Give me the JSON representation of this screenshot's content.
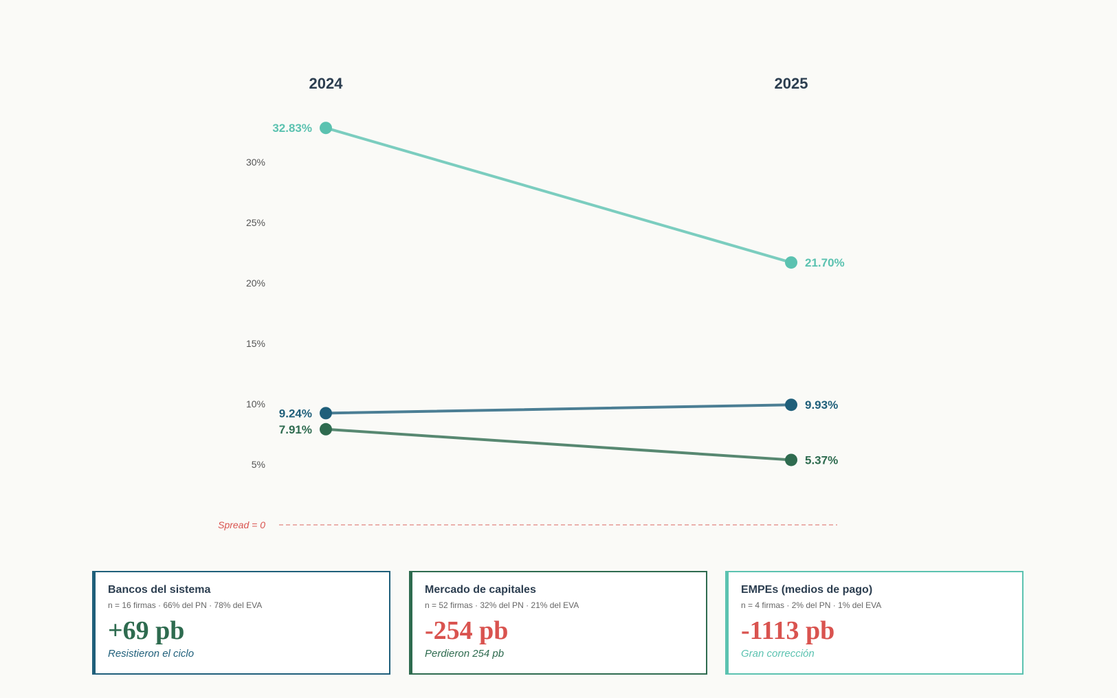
{
  "chart_data": {
    "type": "line",
    "x": [
      "2024",
      "2025"
    ],
    "ylim": [
      0,
      33
    ],
    "yticks": [
      {
        "value": 5,
        "label": "5%"
      },
      {
        "value": 10,
        "label": "10%"
      },
      {
        "value": 15,
        "label": "15%"
      },
      {
        "value": 20,
        "label": "20%"
      },
      {
        "value": 25,
        "label": "25%"
      },
      {
        "value": 30,
        "label": "30%"
      }
    ],
    "reference_line": {
      "value": 0,
      "label": "Spread = 0",
      "color": "#d9534f"
    },
    "grid": false,
    "series": [
      {
        "key": "empes",
        "values": [
          32.83,
          21.7
        ],
        "labels": [
          "32.83%",
          "21.70%"
        ],
        "color": "#5bc2b0"
      },
      {
        "key": "bancos",
        "values": [
          9.24,
          9.93
        ],
        "labels": [
          "9.24%",
          "9.93%"
        ],
        "color": "#1f5f7a"
      },
      {
        "key": "mercado",
        "values": [
          7.91,
          5.37
        ],
        "labels": [
          "7.91%",
          "5.37%"
        ],
        "color": "#2e6b4f"
      }
    ]
  },
  "cards": [
    {
      "title": "Bancos del sistema",
      "meta": "n = 16 firmas · 66% del PN · 78% del EVA",
      "value": "+69 pb",
      "note": "Resistieron el ciclo",
      "border_color": "#1f5f7a",
      "value_color": "#2e6b4f",
      "note_color": "#1f5f7a"
    },
    {
      "title": "Mercado de capitales",
      "meta": "n = 52 firmas · 32% del PN · 21% del EVA",
      "value": "-254 pb",
      "note": "Perdieron 254 pb",
      "border_color": "#2e6b4f",
      "value_color": "#d9534f",
      "note_color": "#2e6b4f"
    },
    {
      "title": "EMPEs (medios de pago)",
      "meta": "n = 4 firmas · 2% del PN · 1% del EVA",
      "value": "-1113 pb",
      "note": "Gran corrección",
      "border_color": "#5bc2b0",
      "value_color": "#d9534f",
      "note_color": "#5bc2b0"
    }
  ]
}
